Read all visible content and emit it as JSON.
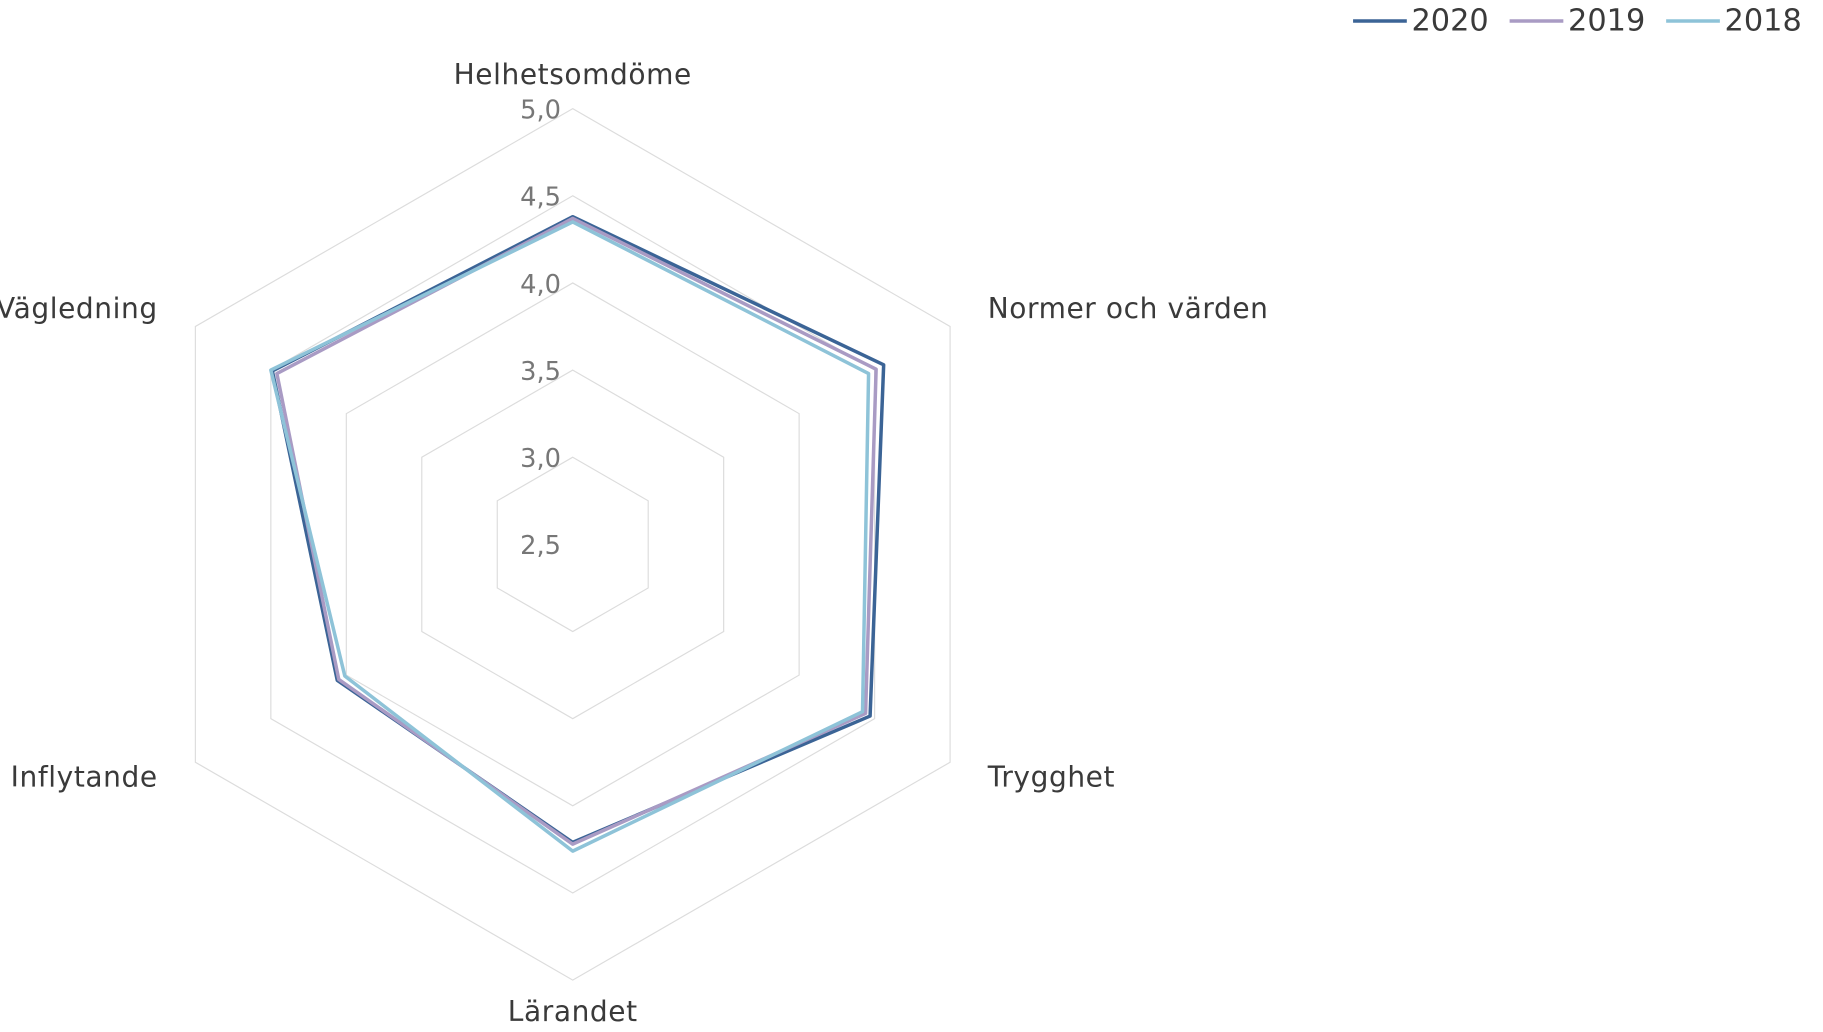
{
  "chart_data": {
    "type": "radar",
    "categories": [
      "Helhetsomdöme",
      "Normer och värden",
      "Trygghet",
      "Lärandet",
      "Inflytande",
      "Vägledning"
    ],
    "series": [
      {
        "name": "2020",
        "color": "#3b6496",
        "values": [
          4.38,
          4.56,
          4.47,
          4.21,
          4.06,
          4.49
        ]
      },
      {
        "name": "2019",
        "color": "#a99bc4",
        "values": [
          4.37,
          4.51,
          4.44,
          4.22,
          4.05,
          4.46
        ]
      },
      {
        "name": "2018",
        "color": "#8ec3d8",
        "values": [
          4.35,
          4.46,
          4.42,
          4.26,
          4.01,
          4.5
        ]
      }
    ],
    "ylim": [
      2.5,
      5
    ],
    "yticks": [
      {
        "value": 2.5,
        "label": "2,5"
      },
      {
        "value": 3,
        "label": "3,0"
      },
      {
        "value": 3.5,
        "label": "3,5"
      },
      {
        "value": 4,
        "label": "4,0"
      },
      {
        "value": 4.5,
        "label": "4,5"
      },
      {
        "value": 5,
        "label": "5,0"
      }
    ],
    "grid": true,
    "legend": "top-right"
  }
}
